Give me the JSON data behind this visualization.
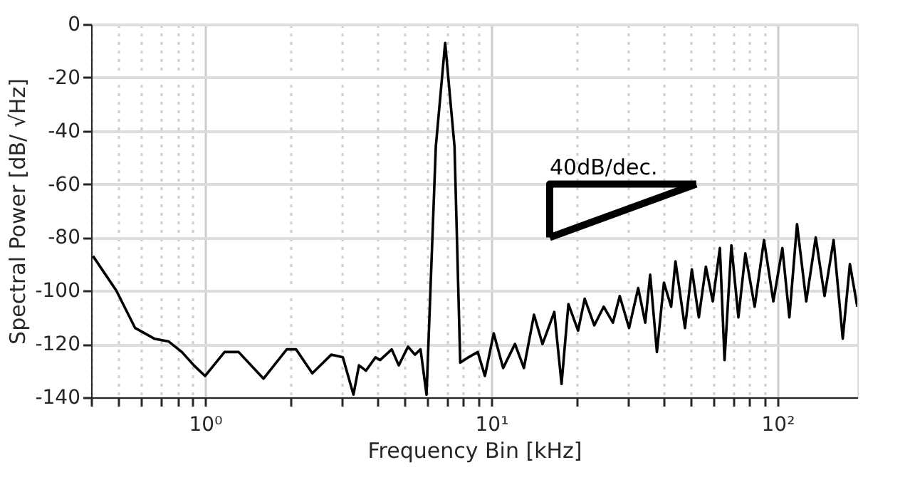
{
  "chart_data": {
    "type": "line",
    "xlabel": "Frequency Bin [kHz]",
    "ylabel": "Spectral Power [dB/ √Hz]",
    "log": "x",
    "grid": true,
    "legend": false,
    "xlim": [
      0.4,
      190
    ],
    "ylim": [
      -140,
      0
    ],
    "xticks": [
      {
        "value": 0.4,
        "label": null
      },
      {
        "value": 0.5,
        "label": null
      },
      {
        "value": 0.6,
        "label": null
      },
      {
        "value": 0.7,
        "label": null
      },
      {
        "value": 0.8,
        "label": null
      },
      {
        "value": 0.9,
        "label": null
      },
      {
        "value": 1,
        "label": "10⁰"
      },
      {
        "value": 2,
        "label": null
      },
      {
        "value": 3,
        "label": null
      },
      {
        "value": 4,
        "label": null
      },
      {
        "value": 5,
        "label": null
      },
      {
        "value": 6,
        "label": null
      },
      {
        "value": 7,
        "label": null
      },
      {
        "value": 8,
        "label": null
      },
      {
        "value": 9,
        "label": null
      },
      {
        "value": 10,
        "label": "10¹"
      },
      {
        "value": 20,
        "label": null
      },
      {
        "value": 30,
        "label": null
      },
      {
        "value": 40,
        "label": null
      },
      {
        "value": 50,
        "label": null
      },
      {
        "value": 60,
        "label": null
      },
      {
        "value": 70,
        "label": null
      },
      {
        "value": 80,
        "label": null
      },
      {
        "value": 90,
        "label": null
      },
      {
        "value": 100,
        "label": "10²"
      }
    ],
    "yticks": [
      -140,
      -120,
      -100,
      -80,
      -60,
      -40,
      -20,
      0
    ],
    "annotations": [
      {
        "text": "40dB/dec.",
        "x": 16,
        "y": -60
      }
    ],
    "series": [
      {
        "color": "#000000",
        "x": [
          0.406,
          0.49,
          0.57,
          0.665,
          0.745,
          0.83,
          0.914,
          1.0,
          1.17,
          1.31,
          1.6,
          1.93,
          2.08,
          2.37,
          2.76,
          3.03,
          3.3,
          3.45,
          3.65,
          3.94,
          4.09,
          4.49,
          4.75,
          5.12,
          5.41,
          5.66,
          5.94,
          6.4,
          6.9,
          7.44,
          7.79,
          8.32,
          8.97,
          9.5,
          10.2,
          11.0,
          12.1,
          13.0,
          14.1,
          15.1,
          16.6,
          17.6,
          18.6,
          20.1,
          21.2,
          22.9,
          24.7,
          26.6,
          28.1,
          30.3,
          32.6,
          34.5,
          35.9,
          37.9,
          40.1,
          42.5,
          44,
          47.5,
          50.2,
          53.1,
          56.2,
          59.4,
          62.9,
          65.3,
          69,
          73,
          77.2,
          83.2,
          89.7,
          96.7,
          104,
          110,
          117,
          126,
          136,
          146,
          157,
          169,
          179,
          190
        ],
        "values": [
          -87,
          -100,
          -114,
          -118,
          -119,
          -123,
          -128,
          -132,
          -123,
          -123,
          -133,
          -122,
          -122,
          -131,
          -124,
          -125,
          -139,
          -128,
          -130,
          -125,
          -126,
          -122,
          -128,
          -121,
          -124,
          -122,
          -139,
          -46,
          -7,
          -46,
          -127,
          -125,
          -123,
          -132,
          -116,
          -129,
          -120,
          -129,
          -109,
          -120,
          -108,
          -135,
          -105,
          -115,
          -103,
          -113,
          -106,
          -112,
          -102,
          -114,
          -99,
          -112,
          -94,
          -123,
          -97,
          -106,
          -89,
          -114,
          -92,
          -110,
          -91,
          -104,
          -84,
          -126,
          -83,
          -110,
          -86,
          -106,
          -81,
          -104,
          -84,
          -110,
          -75,
          -104,
          -80,
          -102,
          -81,
          -118,
          -90,
          -106
        ]
      },
      {
        "type": "line",
        "color": "#000000",
        "x": [
          16,
          52
        ],
        "values": [
          -80,
          -60
        ]
      },
      {
        "type": "line",
        "color": "#000000",
        "x": [
          16,
          16,
          52
        ],
        "values": [
          -80,
          -60,
          -60
        ]
      }
    ]
  }
}
